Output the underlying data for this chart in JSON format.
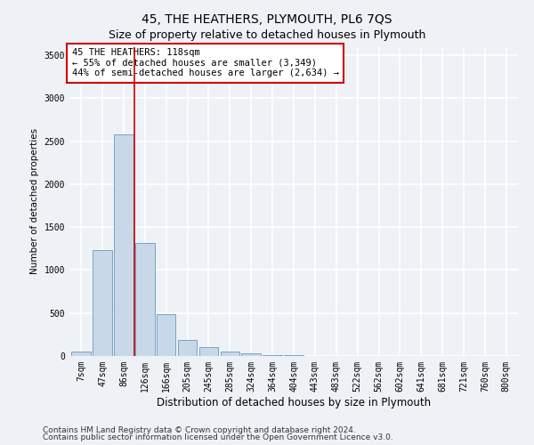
{
  "title": "45, THE HEATHERS, PLYMOUTH, PL6 7QS",
  "subtitle": "Size of property relative to detached houses in Plymouth",
  "xlabel": "Distribution of detached houses by size in Plymouth",
  "ylabel": "Number of detached properties",
  "categories": [
    "7sqm",
    "47sqm",
    "86sqm",
    "126sqm",
    "166sqm",
    "205sqm",
    "245sqm",
    "285sqm",
    "324sqm",
    "364sqm",
    "404sqm",
    "443sqm",
    "483sqm",
    "522sqm",
    "562sqm",
    "602sqm",
    "641sqm",
    "681sqm",
    "721sqm",
    "760sqm",
    "800sqm"
  ],
  "values": [
    50,
    1230,
    2580,
    1320,
    490,
    185,
    100,
    50,
    30,
    15,
    8,
    5,
    2,
    1,
    1,
    0,
    0,
    0,
    0,
    0,
    0
  ],
  "bar_color": "#c8d8e8",
  "bar_edge_color": "#6699bb",
  "vline_color": "#cc0000",
  "vline_position": 2.5,
  "annotation_text": "45 THE HEATHERS: 118sqm\n← 55% of detached houses are smaller (3,349)\n44% of semi-detached houses are larger (2,634) →",
  "annotation_box_facecolor": "#ffffff",
  "annotation_box_edgecolor": "#cc0000",
  "background_color": "#eef2f7",
  "grid_color": "#ffffff",
  "ylim": [
    0,
    3600
  ],
  "yticks": [
    0,
    500,
    1000,
    1500,
    2000,
    2500,
    3000,
    3500
  ],
  "footnote_line1": "Contains HM Land Registry data © Crown copyright and database right 2024.",
  "footnote_line2": "Contains public sector information licensed under the Open Government Licence v3.0.",
  "title_fontsize": 10,
  "subtitle_fontsize": 9,
  "xlabel_fontsize": 8.5,
  "ylabel_fontsize": 7.5,
  "tick_fontsize": 7,
  "annotation_fontsize": 7.5,
  "footnote_fontsize": 6.5
}
